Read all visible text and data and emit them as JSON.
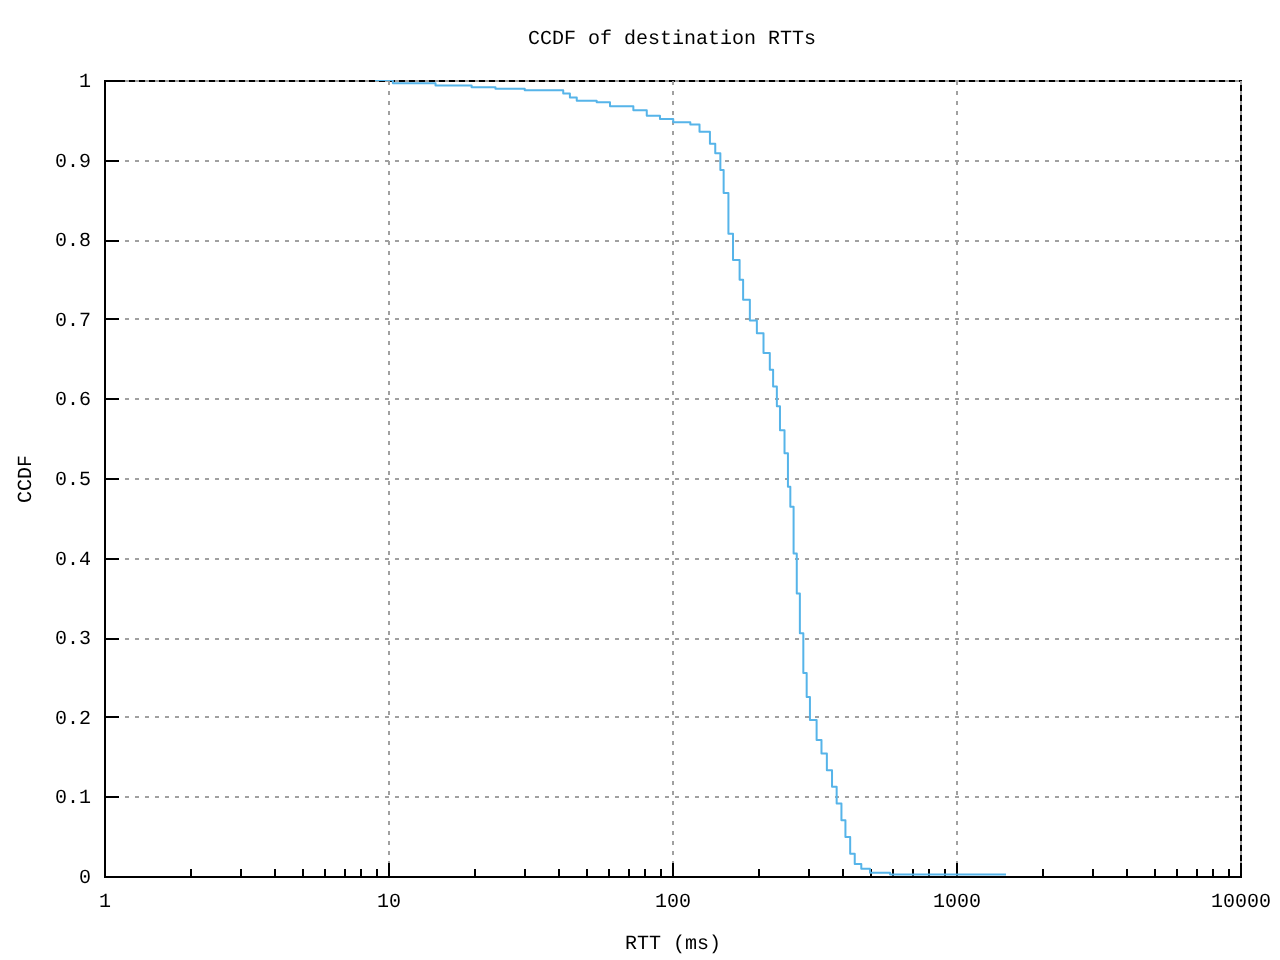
{
  "chart_data": {
    "type": "step",
    "title": "CCDF of destination RTTs",
    "xlabel": "RTT (ms)",
    "ylabel": "CCDF",
    "log": "x",
    "grid": true,
    "xlim": [
      1,
      10000
    ],
    "ylim": [
      0,
      1
    ],
    "xticks": [
      1,
      {
        "value": 2,
        "label": null
      },
      {
        "value": 3,
        "label": null
      },
      {
        "value": 4,
        "label": null
      },
      {
        "value": 5,
        "label": null
      },
      {
        "value": 6,
        "label": null
      },
      {
        "value": 7,
        "label": null
      },
      {
        "value": 8,
        "label": null
      },
      {
        "value": 9,
        "label": null
      },
      10,
      {
        "value": 20,
        "label": null
      },
      {
        "value": 30,
        "label": null
      },
      {
        "value": 40,
        "label": null
      },
      {
        "value": 50,
        "label": null
      },
      {
        "value": 60,
        "label": null
      },
      {
        "value": 70,
        "label": null
      },
      {
        "value": 80,
        "label": null
      },
      {
        "value": 90,
        "label": null
      },
      100,
      {
        "value": 200,
        "label": null
      },
      {
        "value": 300,
        "label": null
      },
      {
        "value": 400,
        "label": null
      },
      {
        "value": 500,
        "label": null
      },
      {
        "value": 600,
        "label": null
      },
      {
        "value": 700,
        "label": null
      },
      {
        "value": 800,
        "label": null
      },
      {
        "value": 900,
        "label": null
      },
      1000,
      {
        "value": 2000,
        "label": null
      },
      {
        "value": 3000,
        "label": null
      },
      {
        "value": 4000,
        "label": null
      },
      {
        "value": 5000,
        "label": null
      },
      {
        "value": 6000,
        "label": null
      },
      {
        "value": 7000,
        "label": null
      },
      {
        "value": 8000,
        "label": null
      },
      {
        "value": 9000,
        "label": null
      },
      10000
    ],
    "yticks": [
      0,
      0.1,
      0.2,
      0.3,
      0.4,
      0.5,
      0.6,
      0.7,
      0.8,
      0.9,
      1
    ],
    "x": [
      9,
      10.4,
      14.7,
      19.7,
      23.9,
      30.3,
      41.4,
      43.7,
      46.2,
      54.3,
      60.5,
      73.1,
      81.5,
      90.7,
      101,
      116,
      125,
      136,
      142,
      148,
      152,
      158,
      164,
      173,
      178,
      188,
      199,
      210,
      221,
      227,
      234,
      240,
      249,
      256,
      261,
      268,
      275,
      282,
      290,
      298,
      306,
      323,
      336,
      351,
      366,
      380,
      395,
      408,
      424,
      440,
      464,
      498,
      586,
      1500
    ],
    "series": [
      {
        "color": "#56b4e9",
        "values": [
          1.0,
          0.996,
          0.993,
          0.991,
          0.989,
          0.987,
          0.983,
          0.978,
          0.974,
          0.972,
          0.967,
          0.962,
          0.955,
          0.951,
          0.947,
          0.944,
          0.935,
          0.92,
          0.908,
          0.887,
          0.858,
          0.807,
          0.774,
          0.749,
          0.724,
          0.698,
          0.682,
          0.657,
          0.636,
          0.615,
          0.59,
          0.56,
          0.531,
          0.489,
          0.464,
          0.405,
          0.355,
          0.305,
          0.255,
          0.225,
          0.196,
          0.171,
          0.154,
          0.133,
          0.112,
          0.091,
          0.07,
          0.049,
          0.028,
          0.015,
          0.009,
          0.004,
          0.002,
          0.002
        ]
      }
    ]
  }
}
